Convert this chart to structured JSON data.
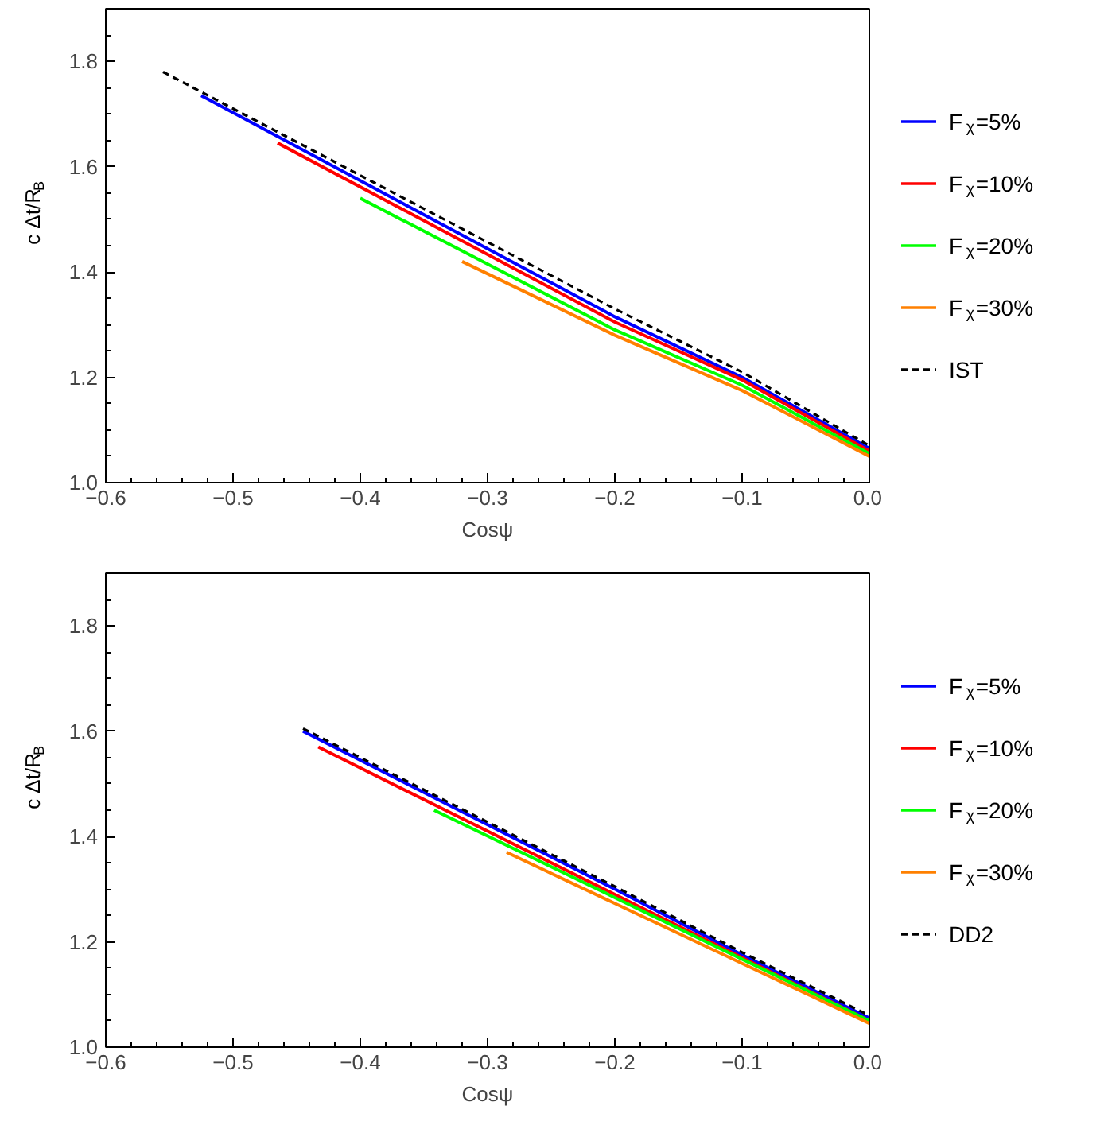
{
  "chart_data": [
    {
      "type": "line",
      "xlabel": "Cosψ",
      "ylabel": "c Δt/R$_{B}$",
      "xlim": [
        -0.6,
        0.0
      ],
      "ylim": [
        1.0,
        1.9
      ],
      "xticks": [
        -0.6,
        -0.5,
        -0.4,
        -0.3,
        -0.2,
        -0.1,
        {
          "value": 0,
          "label": "0.0"
        }
      ],
      "yticks": [
        {
          "value": 1,
          "label": "1.0"
        },
        1.2,
        1.4,
        1.6,
        1.8
      ],
      "grid": false,
      "legend": "right",
      "marker": "none",
      "series": [
        {
          "name": "F$_{χ}$=5%",
          "color": "#0000ff",
          "line_style": "solid",
          "x": [
            -0.525,
            -0.2,
            -0.1,
            0.0
          ],
          "values": [
            1.735,
            1.315,
            1.2,
            1.065
          ]
        },
        {
          "name": "F$_{χ}$=10%",
          "color": "#ff0000",
          "line_style": "solid",
          "x": [
            -0.465,
            -0.2,
            -0.1,
            0.0
          ],
          "values": [
            1.645,
            1.305,
            1.195,
            1.06
          ]
        },
        {
          "name": "F$_{χ}$=20%",
          "color": "#00ff00",
          "line_style": "solid",
          "x": [
            -0.4,
            -0.2,
            -0.1,
            0.0
          ],
          "values": [
            1.54,
            1.29,
            1.185,
            1.055
          ]
        },
        {
          "name": "F$_{χ}$=30%",
          "color": "#ff8000",
          "line_style": "solid",
          "x": [
            -0.32,
            -0.2,
            -0.1,
            0.0
          ],
          "values": [
            1.42,
            1.28,
            1.175,
            1.05
          ]
        },
        {
          "name": "IST",
          "color": "#000000",
          "line_style": "dashed",
          "x": [
            -0.555,
            -0.2,
            -0.1,
            0.0
          ],
          "values": [
            1.78,
            1.33,
            1.21,
            1.07
          ]
        }
      ]
    },
    {
      "type": "line",
      "xlabel": "Cosψ",
      "ylabel": "c Δt/R$_{B}$",
      "xlim": [
        -0.6,
        0.0
      ],
      "ylim": [
        1.0,
        1.9
      ],
      "xticks": [
        -0.6,
        -0.5,
        -0.4,
        -0.3,
        -0.2,
        -0.1,
        {
          "value": 0,
          "label": "0.0"
        }
      ],
      "yticks": [
        {
          "value": 1,
          "label": "1.0"
        },
        1.2,
        1.4,
        1.6,
        1.8
      ],
      "grid": false,
      "legend": "right",
      "marker": "none",
      "series": [
        {
          "name": "F$_{χ}$=5%",
          "color": "#0000ff",
          "line_style": "solid",
          "x": [
            -0.445,
            -0.2,
            -0.1,
            0.0
          ],
          "values": [
            1.6,
            1.3,
            1.175,
            1.055
          ]
        },
        {
          "name": "F$_{χ}$=10%",
          "color": "#ff0000",
          "line_style": "solid",
          "x": [
            -0.433,
            -0.2,
            -0.1,
            0.0
          ],
          "values": [
            1.57,
            1.29,
            1.17,
            1.05
          ]
        },
        {
          "name": "F$_{χ}$=20%",
          "color": "#00ff00",
          "line_style": "solid",
          "x": [
            -0.342,
            -0.2,
            -0.1,
            0.0
          ],
          "values": [
            1.45,
            1.284,
            1.167,
            1.05
          ]
        },
        {
          "name": "F$_{χ}$=30%",
          "color": "#ff8000",
          "line_style": "solid",
          "x": [
            -0.285,
            -0.2,
            -0.1,
            0.0
          ],
          "values": [
            1.37,
            1.273,
            1.159,
            1.045
          ]
        },
        {
          "name": "DD2",
          "color": "#000000",
          "line_style": "dashed",
          "x": [
            -0.445,
            -0.2,
            -0.1,
            0.0
          ],
          "values": [
            1.605,
            1.305,
            1.18,
            1.06
          ]
        }
      ]
    }
  ]
}
